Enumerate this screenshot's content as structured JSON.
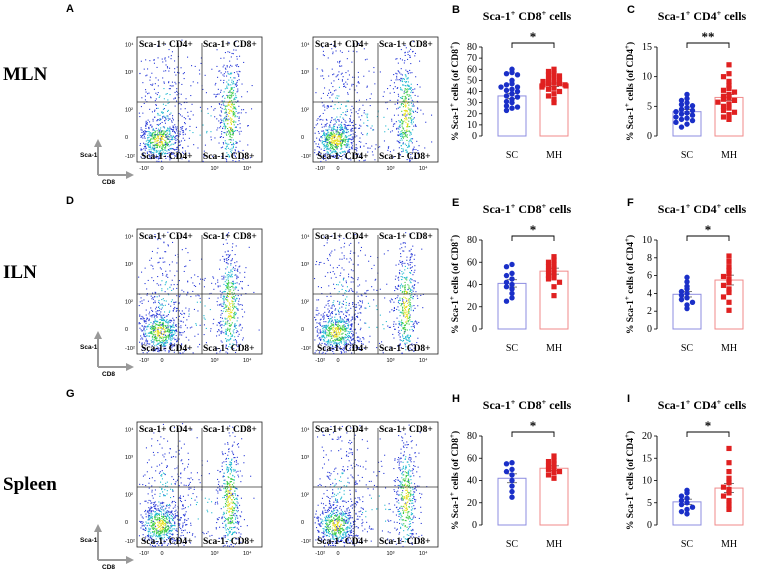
{
  "figure": {
    "rows": [
      {
        "key": "mln",
        "label": "MLN",
        "flow_letter": "A"
      },
      {
        "key": "iln",
        "label": "ILN",
        "flow_letter": "D"
      },
      {
        "key": "spleen",
        "label": "Spleen",
        "flow_letter": "G"
      }
    ],
    "flow": {
      "quadrants": [
        "Sca-1+ CD4+",
        "Sca-1+ CD8+",
        "Sca-1- CD4+",
        "Sca-1- CD8+"
      ],
      "alt_quadrants": [
        "Sca-1+ CD4+",
        "Sca-1+ CD8+",
        "Sca-1- CD4+",
        "Sca-1- CD8+"
      ],
      "x_axis_label": "CD8",
      "y_axis_label": "Sca-1",
      "x_ticks": [
        "-10²",
        "0",
        "10³",
        "10⁴"
      ],
      "y_ticks": [
        "10⁴",
        "10³",
        "10²",
        "0",
        "-10²"
      ],
      "colors": {
        "sparse": "#2a3bd8",
        "mid": "#1fb8d0",
        "dense": "#3ccc46",
        "hot": "#e8e020"
      }
    },
    "sc_color": "#1a2fc8",
    "mh_color": "#e02020",
    "sc_bar_edge": "#8c8ce0",
    "mh_bar_edge": "#f08a8a"
  },
  "chart_data": [
    {
      "letter": "B",
      "type": "bar",
      "title": "Sca-1⁺ CD8⁺ cells",
      "title_main": "Sca-1",
      "title_sup1": "+",
      "title_mid": " CD8",
      "title_sup2": "+",
      "title_end": " cells",
      "ylabel": "% Sca-1⁺ cells (of CD8⁺)",
      "ylabel_a": "% Sca-1",
      "ylabel_b": "+",
      "ylabel_c": " cells (of CD8",
      "ylabel_d": "+",
      "ylabel_e": ")",
      "categories": [
        "SC",
        "MH"
      ],
      "ylim": [
        0,
        80
      ],
      "yticks": [
        "0",
        "10",
        "20",
        "30",
        "40",
        "50",
        "60",
        "70",
        "80"
      ],
      "significance": "*",
      "series": [
        {
          "name": "SC",
          "mean": 36,
          "sem": 2.2,
          "points": [
            60,
            57,
            56,
            55,
            50,
            47,
            46,
            44,
            44,
            42,
            41,
            40,
            38,
            36,
            35,
            33,
            31,
            30,
            27,
            26,
            25,
            23
          ]
        },
        {
          "name": "MH",
          "mean": 46,
          "sem": 1.6,
          "points": [
            60,
            58,
            56,
            55,
            54,
            52,
            51,
            50,
            49,
            48,
            47,
            47,
            46,
            46,
            45,
            45,
            44,
            43,
            42,
            40,
            38,
            36,
            33,
            30
          ]
        }
      ]
    },
    {
      "letter": "C",
      "type": "bar",
      "title": "Sca-1⁺ CD4⁺ cells",
      "title_main": "Sca-1",
      "title_sup1": "+",
      "title_mid": " CD4",
      "title_sup2": "+",
      "title_end": " cells",
      "ylabel": "% Sca-1⁺ cells (of CD4⁺)",
      "ylabel_a": "% Sca-1",
      "ylabel_b": "+",
      "ylabel_c": " cells (of CD4",
      "ylabel_d": "+",
      "ylabel_e": ")",
      "categories": [
        "SC",
        "MH"
      ],
      "ylim": [
        0,
        15
      ],
      "yticks": [
        "0",
        "5",
        "10",
        "15"
      ],
      "significance": "**",
      "series": [
        {
          "name": "SC",
          "mean": 4.1,
          "sem": 0.35,
          "points": [
            7.0,
            6.3,
            6.0,
            5.6,
            5.3,
            5.1,
            4.8,
            4.5,
            4.3,
            4.1,
            3.9,
            3.7,
            3.5,
            3.2,
            3.0,
            2.8,
            2.6,
            2.3,
            2.0,
            1.5
          ]
        },
        {
          "name": "MH",
          "mean": 6.5,
          "sem": 0.5,
          "points": [
            12.0,
            10.5,
            10.0,
            9.2,
            8.5,
            8.0,
            7.7,
            7.4,
            7.0,
            6.7,
            6.4,
            6.2,
            6.0,
            5.7,
            5.4,
            5.0,
            4.7,
            4.3,
            4.0,
            3.6,
            3.2,
            2.8
          ]
        }
      ]
    },
    {
      "letter": "E",
      "type": "bar",
      "title": "Sca-1⁺ CD8⁺ cells",
      "title_main": "Sca-1",
      "title_sup1": "+",
      "title_mid": " CD8",
      "title_sup2": "+",
      "title_end": " cells",
      "ylabel": "% Sca-1⁺ cells (of CD8⁺)",
      "ylabel_a": "% Sca-1",
      "ylabel_b": "+",
      "ylabel_c": " cells (of CD8",
      "ylabel_d": "+",
      "ylabel_e": ")",
      "categories": [
        "SC",
        "MH"
      ],
      "ylim": [
        0,
        80
      ],
      "yticks": [
        "0",
        "20",
        "40",
        "60",
        "80"
      ],
      "significance": "*",
      "series": [
        {
          "name": "SC",
          "mean": 41,
          "sem": 3.3,
          "points": [
            58,
            56,
            50,
            48,
            45,
            42,
            40,
            38,
            36,
            32,
            28,
            25
          ]
        },
        {
          "name": "MH",
          "mean": 52,
          "sem": 2.7,
          "points": [
            65,
            62,
            60,
            58,
            56,
            54,
            52,
            50,
            48,
            46,
            45,
            42,
            38,
            30
          ]
        }
      ]
    },
    {
      "letter": "F",
      "type": "bar",
      "title": "Sca-1⁺ CD4⁺ cells",
      "title_main": "Sca-1",
      "title_sup1": "+",
      "title_mid": " CD4",
      "title_sup2": "+",
      "title_end": " cells",
      "ylabel": "% Sca-1⁺ cells (of CD4⁺)",
      "ylabel_a": "% Sca-1",
      "ylabel_b": "+",
      "ylabel_c": " cells (of CD4",
      "ylabel_d": "+",
      "ylabel_e": ")",
      "categories": [
        "SC",
        "MH"
      ],
      "ylim": [
        0,
        10
      ],
      "yticks": [
        "0",
        "2",
        "4",
        "6",
        "8",
        "10"
      ],
      "significance": "*",
      "series": [
        {
          "name": "SC",
          "mean": 3.9,
          "sem": 0.3,
          "points": [
            5.8,
            5.3,
            4.8,
            4.5,
            4.2,
            4.0,
            3.8,
            3.5,
            3.3,
            3.0,
            2.7,
            2.3
          ]
        },
        {
          "name": "MH",
          "mean": 5.5,
          "sem": 0.55,
          "points": [
            8.2,
            7.6,
            7.0,
            6.6,
            6.2,
            5.9,
            5.6,
            5.2,
            4.9,
            4.5,
            4.1,
            3.6,
            3.0,
            2.1
          ]
        }
      ]
    },
    {
      "letter": "H",
      "type": "bar",
      "title": "Sca-1⁺ CD8⁺ cells",
      "title_main": "Sca-1",
      "title_sup1": "+",
      "title_mid": " CD8",
      "title_sup2": "+",
      "title_end": " cells",
      "ylabel": "% Sca-1⁺ cells (of CD8⁺)",
      "ylabel_a": "% Sca-1",
      "ylabel_b": "+",
      "ylabel_c": " cells (of CD8",
      "ylabel_d": "+",
      "ylabel_e": ")",
      "categories": [
        "SC",
        "MH"
      ],
      "ylim": [
        0,
        80
      ],
      "yticks": [
        "0",
        "20",
        "40",
        "60",
        "80"
      ],
      "significance": "*",
      "series": [
        {
          "name": "SC",
          "mean": 42,
          "sem": 4.0,
          "points": [
            56,
            55,
            50,
            48,
            45,
            40,
            35,
            30,
            25
          ]
        },
        {
          "name": "MH",
          "mean": 51,
          "sem": 2.2,
          "points": [
            62,
            58,
            57,
            55,
            53,
            51,
            50,
            48,
            47,
            45,
            42
          ]
        }
      ]
    },
    {
      "letter": "I",
      "type": "bar",
      "title": "Sca-1⁺ CD4⁺ cells",
      "title_main": "Sca-1",
      "title_sup1": "+",
      "title_mid": " CD4",
      "title_sup2": "+",
      "title_end": " cells",
      "ylabel": "% Sca-1⁺ cells (of CD4⁺)",
      "ylabel_a": "% Sca-1",
      "ylabel_b": "+",
      "ylabel_c": " cells (of CD4",
      "ylabel_d": "+",
      "ylabel_e": ")",
      "categories": [
        "SC",
        "MH"
      ],
      "ylim": [
        0,
        20
      ],
      "yticks": [
        "0",
        "5",
        "10",
        "15",
        "20"
      ],
      "significance": "*",
      "series": [
        {
          "name": "SC",
          "mean": 5.2,
          "sem": 0.6,
          "points": [
            7.8,
            7.2,
            6.5,
            6.0,
            5.5,
            5.0,
            4.6,
            4.0,
            3.5,
            3.0,
            2.5
          ]
        },
        {
          "name": "MH",
          "mean": 8.3,
          "sem": 1.0,
          "points": [
            17.2,
            14.0,
            12.0,
            10.5,
            9.5,
            8.5,
            8.0,
            7.2,
            6.5,
            5.5,
            4.5,
            3.5
          ]
        }
      ]
    }
  ]
}
